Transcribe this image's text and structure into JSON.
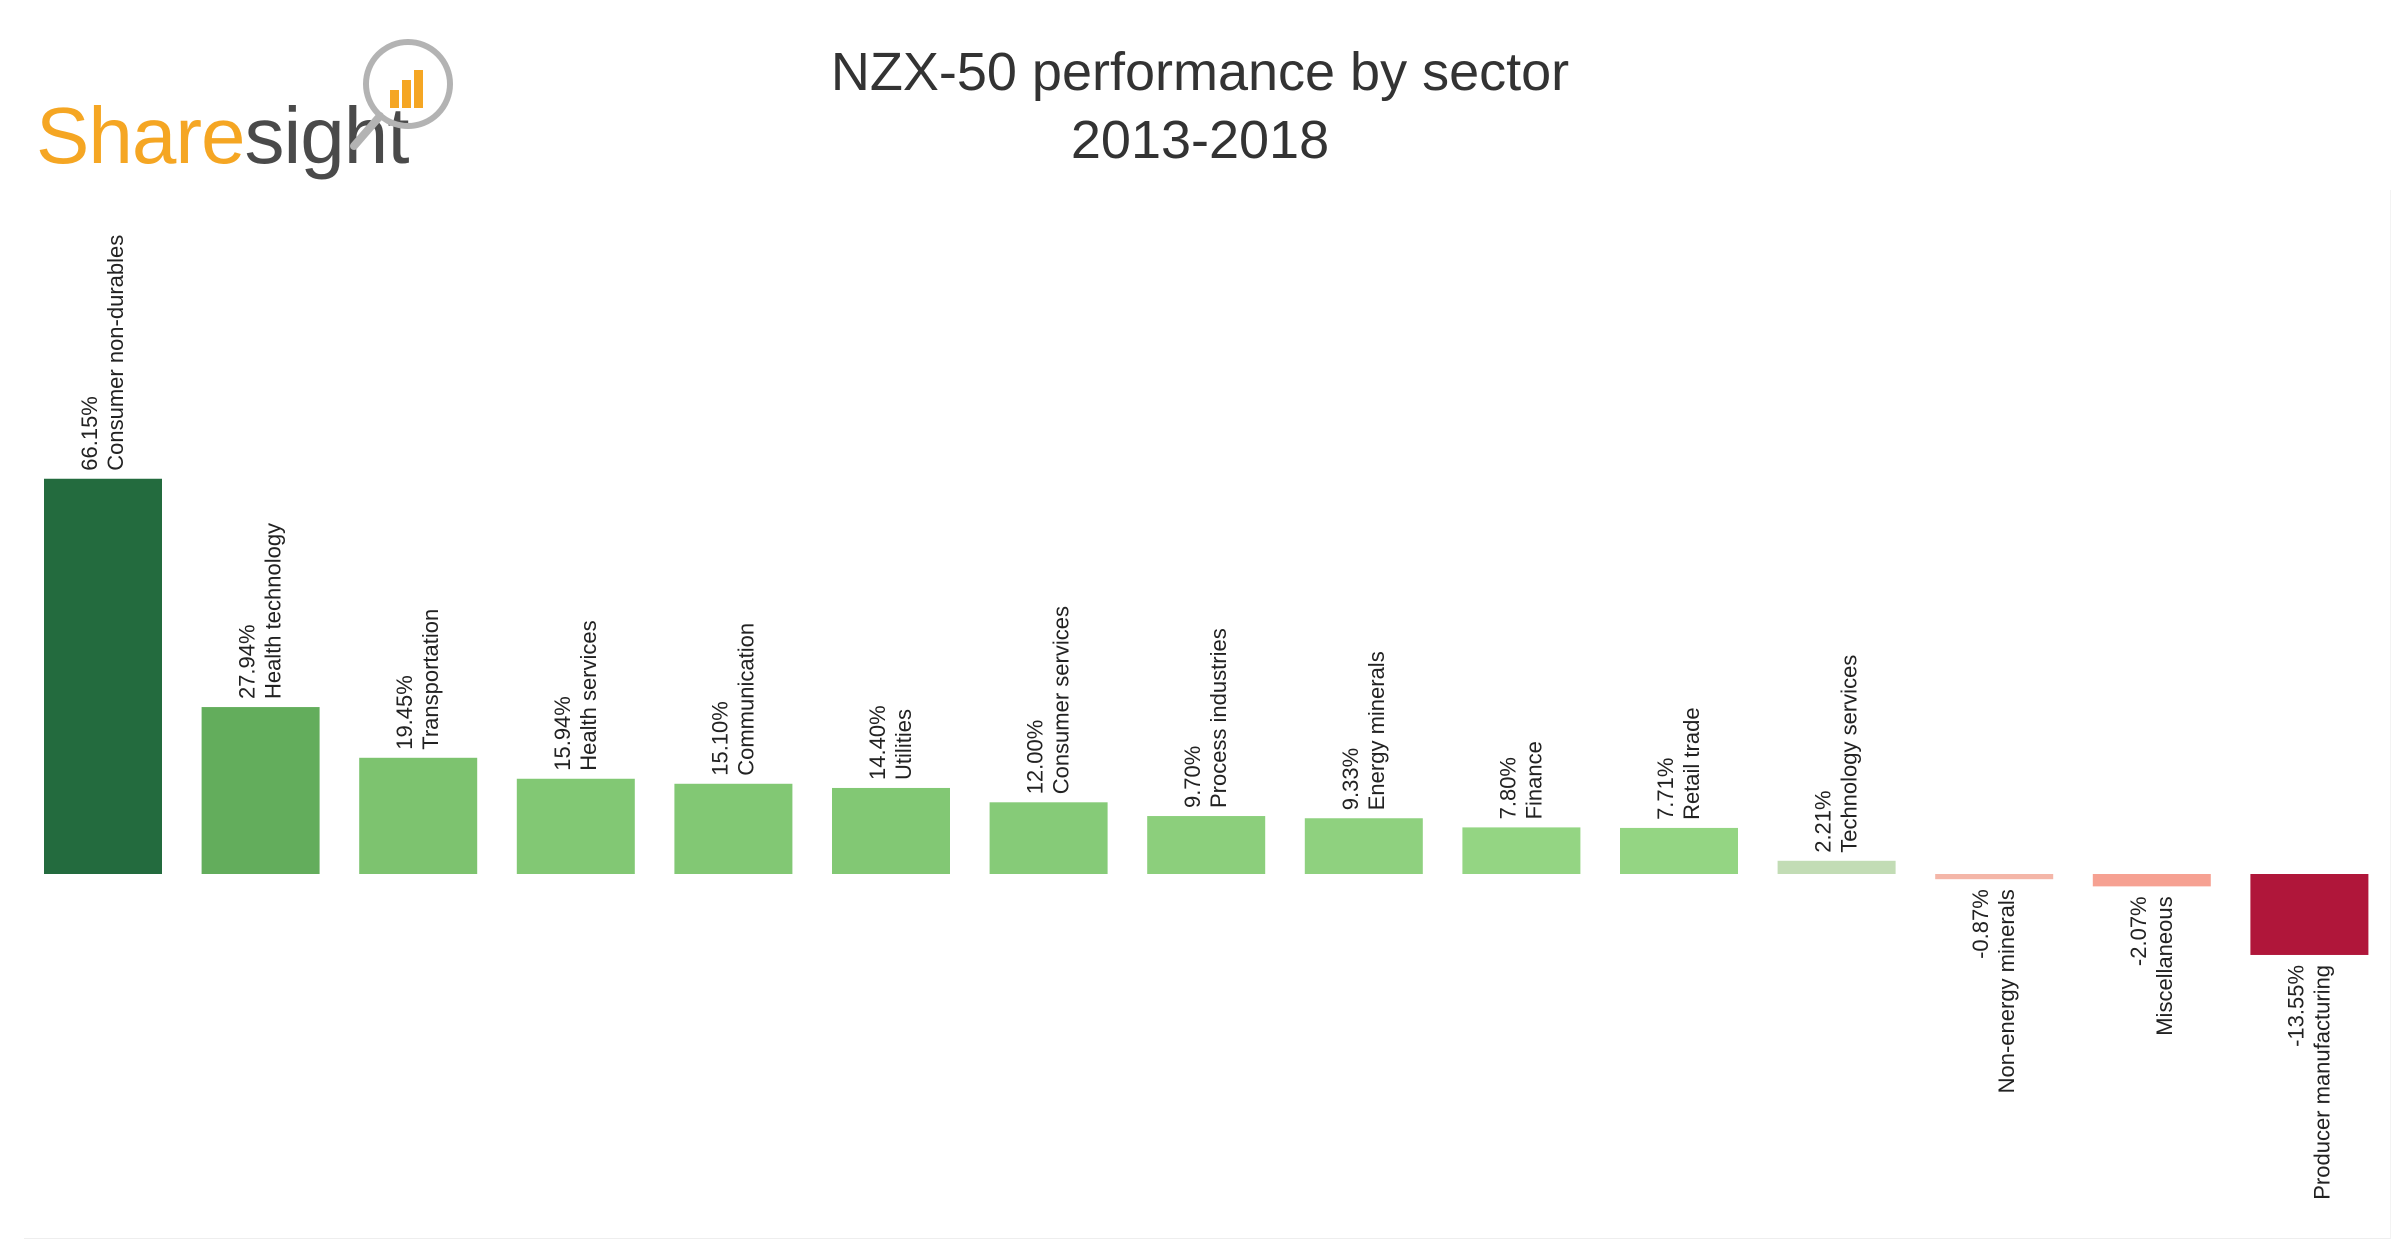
{
  "title_lines": [
    "NZX-50 performance by sector",
    "2013-2018"
  ],
  "logo": {
    "part1": "Share",
    "part2": "sight",
    "part1_color": "#f5a623",
    "part2_color": "#4a4a4a"
  },
  "chart_data": {
    "type": "bar",
    "title": "NZX-50 performance by sector 2013-2018",
    "categories": [
      "Consumer non-durables",
      "Health technology",
      "Transportation",
      "Health services",
      "Communication",
      "Utilities",
      "Consumer services",
      "Process industries",
      "Energy minerals",
      "Finance",
      "Retail trade",
      "Technology services",
      "Non-energy minerals",
      "Miscellaneous",
      "Producer manufacturing"
    ],
    "values": [
      66.15,
      27.94,
      19.45,
      15.94,
      15.1,
      14.4,
      12.0,
      9.7,
      9.33,
      7.8,
      7.71,
      2.21,
      -0.87,
      -2.07,
      -13.55
    ],
    "value_labels": [
      "66.15%",
      "27.94%",
      "19.45%",
      "15.94%",
      "15.10%",
      "14.40%",
      "12.00%",
      "9.70%",
      "9.33%",
      "7.80%",
      "7.71%",
      "2.21%",
      "-0.87%",
      "-2.07%",
      "-13.55%"
    ],
    "colors": [
      "#236b3e",
      "#63ad5c",
      "#7dc36f",
      "#82c874",
      "#82c874",
      "#82c874",
      "#86cb78",
      "#8ccf7c",
      "#8fd17f",
      "#94d583",
      "#94d583",
      "#c2dcb5",
      "#f4b6a8",
      "#f6a192",
      "#b0163a"
    ],
    "xlabel": "",
    "ylabel": "",
    "grid": false,
    "legend": "none"
  }
}
